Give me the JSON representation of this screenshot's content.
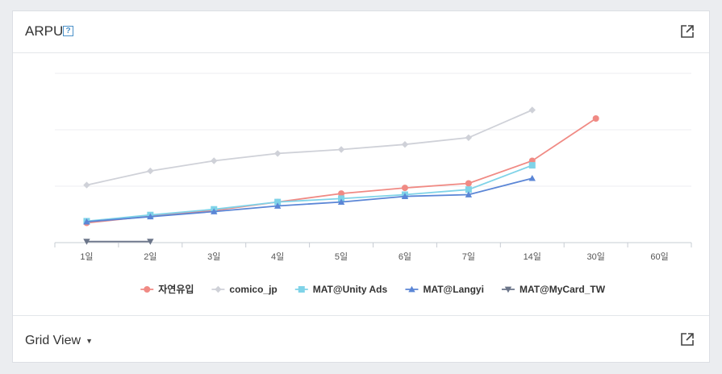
{
  "panel": {
    "title": "ARPU",
    "help_glyph": "?"
  },
  "footer": {
    "label": "Grid View"
  },
  "icons": {
    "help": "help-icon",
    "export": "external-link-icon",
    "caret": "caret-down-icon"
  },
  "chart_data": {
    "type": "line",
    "categories": [
      "1일",
      "2일",
      "3일",
      "4일",
      "5일",
      "6일",
      "7일",
      "14일",
      "30일",
      "60일"
    ],
    "ylim": [
      0,
      3
    ],
    "grid": true,
    "legend": "bottom",
    "series": [
      {
        "name": "자연유입",
        "color": "#f08a84",
        "marker": "circle",
        "values": [
          0.35,
          0.47,
          0.57,
          0.72,
          0.87,
          0.97,
          1.05,
          1.45,
          2.2,
          null
        ]
      },
      {
        "name": "comico_jp",
        "color": "#cfd1d8",
        "marker": "diamond",
        "values": [
          1.02,
          1.27,
          1.45,
          1.58,
          1.65,
          1.74,
          1.86,
          2.35,
          null,
          null
        ]
      },
      {
        "name": "MAT@Unity Ads",
        "color": "#7fd3e8",
        "marker": "square",
        "values": [
          0.38,
          0.49,
          0.59,
          0.72,
          0.78,
          0.85,
          0.94,
          1.37,
          null,
          null
        ]
      },
      {
        "name": "MAT@Langyi",
        "color": "#5b86d6",
        "marker": "triangle-up",
        "values": [
          0.37,
          0.46,
          0.55,
          0.65,
          0.72,
          0.82,
          0.85,
          1.14,
          null,
          null
        ]
      },
      {
        "name": "MAT@MyCard_TW",
        "color": "#6b7589",
        "marker": "triangle-down",
        "values": [
          0.02,
          0.02,
          null,
          null,
          null,
          null,
          null,
          null,
          null,
          null
        ]
      }
    ]
  }
}
